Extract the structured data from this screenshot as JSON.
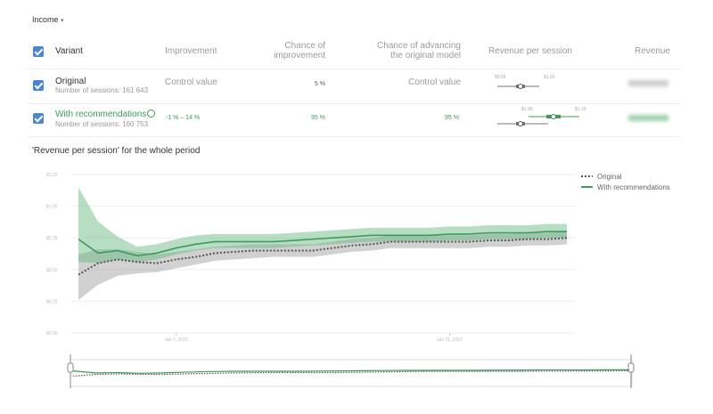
{
  "header": {
    "dropdown": "Income"
  },
  "table": {
    "columns": [
      "Variant",
      "Improvement",
      "Chance of improvement",
      "Chance of advancing the original model",
      "Revenue per session",
      "Revenue"
    ],
    "rows": [
      {
        "name": "Original",
        "sessions": "Number of sessions: 161 643",
        "improvement": "Control value",
        "chance_improvement": "5 %",
        "chance_advancing": "Control value",
        "rps_labels": [
          "$0.93",
          "$1.03"
        ]
      },
      {
        "name": "With recommendations",
        "sessions": "Number of sessions: 160 753",
        "improvement": "-1 % – 14 %",
        "chance_improvement": "95 %",
        "chance_advancing": "95 %",
        "rps_labels": [
          "$1.00",
          "$1.10"
        ]
      }
    ]
  },
  "chart": {
    "type": "line",
    "title": "'Revenue per session' for the whole period",
    "x": [
      "2019-01-02",
      "2019-01-03",
      "2019-01-04",
      "2019-01-05",
      "2019-01-06",
      "2019-01-07",
      "2019-01-08",
      "2019-01-09",
      "2019-01-10",
      "2019-01-11",
      "2019-01-12",
      "2019-01-13",
      "2019-01-14",
      "2019-01-15",
      "2019-01-16",
      "2019-01-17",
      "2019-01-18",
      "2019-01-19",
      "2019-01-20",
      "2019-01-21",
      "2019-01-22",
      "2019-01-23",
      "2019-01-24",
      "2019-01-25",
      "2019-01-26",
      "2019-01-27"
    ],
    "xticks": [
      {
        "value": "2019-01-07",
        "label": "Jan 7, 2019"
      },
      {
        "value": "2019-01-21",
        "label": "Jan 21, 2019"
      }
    ],
    "ylim": [
      0,
      1.25
    ],
    "yticks": [
      {
        "value": 0,
        "label": "$0.00"
      },
      {
        "value": 0.25,
        "label": "$0.25"
      },
      {
        "value": 0.5,
        "label": "$0.50"
      },
      {
        "value": 0.75,
        "label": "$0.75"
      },
      {
        "value": 1,
        "label": "$1.00"
      },
      {
        "value": 1.25,
        "label": "$1.25"
      }
    ],
    "grid": true,
    "series": [
      {
        "name": "Original",
        "color": "#555555",
        "band_color": "#9a9a9a",
        "dashed": true,
        "values": [
          0.46,
          0.55,
          0.58,
          0.56,
          0.55,
          0.58,
          0.6,
          0.63,
          0.64,
          0.65,
          0.65,
          0.65,
          0.65,
          0.67,
          0.69,
          0.7,
          0.72,
          0.72,
          0.72,
          0.72,
          0.72,
          0.73,
          0.73,
          0.74,
          0.74,
          0.75
        ],
        "lower": [
          0.26,
          0.38,
          0.45,
          0.47,
          0.48,
          0.51,
          0.54,
          0.57,
          0.58,
          0.59,
          0.6,
          0.6,
          0.6,
          0.62,
          0.64,
          0.65,
          0.67,
          0.67,
          0.67,
          0.67,
          0.67,
          0.68,
          0.68,
          0.69,
          0.69,
          0.7
        ],
        "upper": [
          0.62,
          0.66,
          0.66,
          0.64,
          0.62,
          0.64,
          0.66,
          0.68,
          0.69,
          0.7,
          0.7,
          0.7,
          0.7,
          0.72,
          0.74,
          0.75,
          0.77,
          0.77,
          0.77,
          0.77,
          0.77,
          0.78,
          0.78,
          0.79,
          0.79,
          0.8
        ]
      },
      {
        "name": "With recommendations",
        "color": "#3c9a5a",
        "band_color": "#5fb67a",
        "dashed": false,
        "values": [
          0.74,
          0.63,
          0.65,
          0.61,
          0.63,
          0.67,
          0.7,
          0.72,
          0.72,
          0.72,
          0.72,
          0.73,
          0.74,
          0.75,
          0.76,
          0.77,
          0.77,
          0.77,
          0.77,
          0.78,
          0.78,
          0.79,
          0.79,
          0.79,
          0.8,
          0.8
        ],
        "lower": [
          0.56,
          0.55,
          0.58,
          0.56,
          0.58,
          0.62,
          0.65,
          0.67,
          0.67,
          0.67,
          0.67,
          0.68,
          0.69,
          0.7,
          0.71,
          0.72,
          0.72,
          0.72,
          0.72,
          0.73,
          0.73,
          0.74,
          0.74,
          0.74,
          0.75,
          0.75
        ],
        "upper": [
          1.15,
          0.88,
          0.76,
          0.68,
          0.7,
          0.74,
          0.77,
          0.78,
          0.78,
          0.78,
          0.78,
          0.79,
          0.8,
          0.81,
          0.82,
          0.83,
          0.83,
          0.83,
          0.83,
          0.84,
          0.84,
          0.85,
          0.85,
          0.85,
          0.86,
          0.86
        ]
      }
    ]
  }
}
